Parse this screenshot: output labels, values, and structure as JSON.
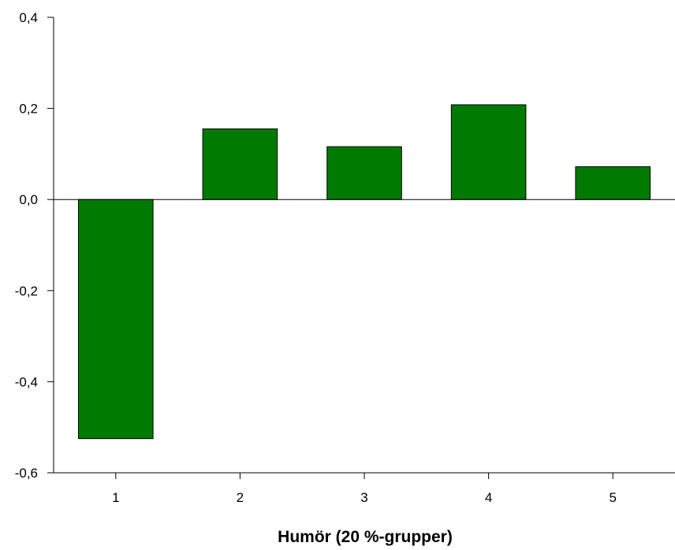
{
  "chart_data": {
    "type": "bar",
    "title": "",
    "xlabel": "Humör (20 %-grupper)",
    "ylabel": "",
    "categories": [
      "1",
      "2",
      "3",
      "4",
      "5"
    ],
    "values": [
      -0.525,
      0.155,
      0.116,
      0.208,
      0.072
    ],
    "ylim": [
      -0.6,
      0.4
    ],
    "y_ticks": [
      0.4,
      0.2,
      0.0,
      -0.2,
      -0.4,
      -0.6
    ],
    "y_tick_labels": [
      "0,4",
      "0,2",
      "0,0",
      "-0,2",
      "-0,4",
      "-0,6"
    ],
    "bar_color": "#007a00",
    "bar_edge_color": "#000000",
    "zero_line": true,
    "grid": false,
    "legend": "none"
  }
}
